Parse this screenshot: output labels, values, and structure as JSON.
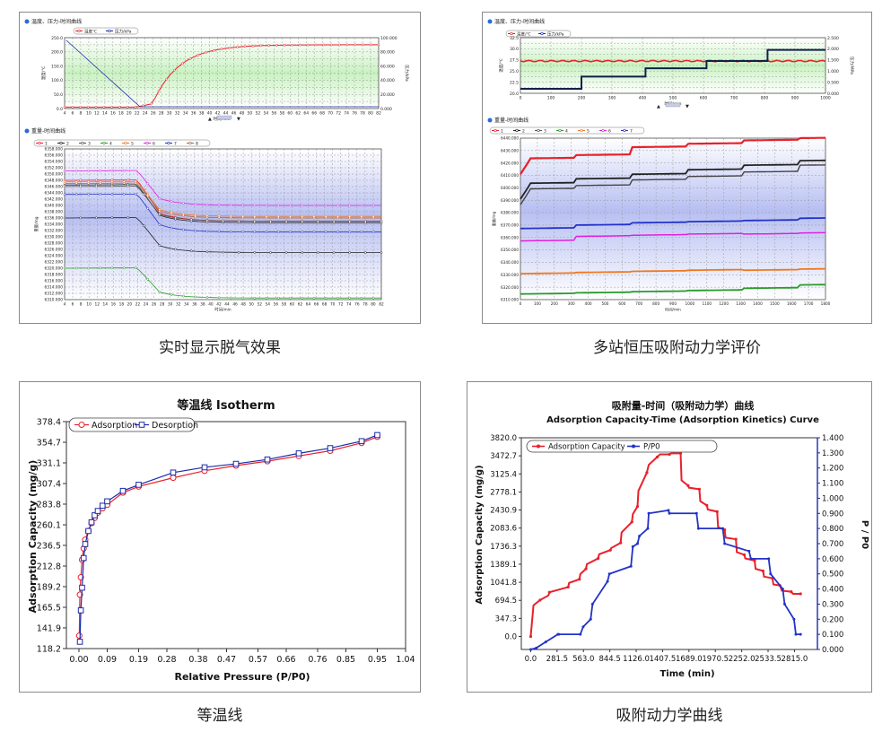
{
  "captions": {
    "p1": "实时显示脱气效果",
    "p2": "多站恒压吸附动力学评价",
    "p3": "等温线",
    "p4": "吸附动力学曲线"
  },
  "p1": {
    "top_title": "温度、压力-时间曲线",
    "top_legend": [
      "温度℃",
      "压力/kPa"
    ],
    "top_left_ticks": [
      "0.0",
      "50.0",
      "100.0",
      "150.0",
      "200.0",
      "250.0"
    ],
    "top_right_ticks": [
      "0.000",
      "20.000",
      "40.000",
      "60.000",
      "80.000",
      "100.000"
    ],
    "top_yleft": "温度/℃",
    "top_yright": "压力/kPa",
    "x_ticks": [
      "4",
      "6",
      "8",
      "10",
      "12",
      "14",
      "16",
      "18",
      "20",
      "22",
      "24",
      "26",
      "28",
      "30",
      "32",
      "34",
      "36",
      "38",
      "40",
      "42",
      "44",
      "46",
      "48",
      "50",
      "52",
      "54",
      "56",
      "58",
      "60",
      "62",
      "64",
      "66",
      "68",
      "70",
      "72",
      "74",
      "76",
      "78",
      "80",
      "82"
    ],
    "x_label": "时间/min",
    "bottom_title": "重量-时间曲线",
    "bottom_legend": [
      "1",
      "2",
      "3",
      "4",
      "5",
      "6",
      "7",
      "8"
    ],
    "bottom_y_ticks": [
      "6310.000",
      "6312.000",
      "6314.000",
      "6316.000",
      "6318.000",
      "6320.000",
      "6322.000",
      "6324.000",
      "6326.000",
      "6328.000",
      "6330.000",
      "6332.000",
      "6334.000",
      "6336.000",
      "6338.000",
      "6340.000",
      "6342.000",
      "6344.000",
      "6346.000",
      "6348.000",
      "6350.000",
      "6352.000",
      "6354.000",
      "6356.000",
      "6358.000"
    ],
    "bottom_ylabel": "重量/mg"
  },
  "p2": {
    "top_title": "温度、压力-时间曲线",
    "top_legend": [
      "温度/℃",
      "压力/kPa"
    ],
    "top_left_ticks": [
      "20.0",
      "22.5",
      "25.0",
      "27.5",
      "30.0",
      "32.5"
    ],
    "top_right_ticks": [
      "0.000",
      "0.500",
      "1.000",
      "1.500",
      "2.000",
      "2.500"
    ],
    "top_yleft": "温度/℃",
    "top_yright": "压力/MPa",
    "x_ticks": [
      "0",
      "100",
      "200",
      "300",
      "400",
      "500",
      "600",
      "700",
      "800",
      "900",
      "1000",
      "1100",
      "1200",
      "1300",
      "1400",
      "1500",
      "1600",
      "1700",
      "1800"
    ],
    "top_x_ticks": [
      "0",
      "100",
      "200",
      "300",
      "400",
      "500",
      "600",
      "700",
      "800",
      "900",
      "1000"
    ],
    "x_label": "时间/min",
    "bottom_title": "重量-时间曲线",
    "bottom_legend": [
      "1",
      "2",
      "3",
      "4",
      "5",
      "6",
      "7"
    ],
    "bottom_y_ticks": [
      "6310.000",
      "6320.000",
      "6330.000",
      "6340.000",
      "6350.000",
      "6360.000",
      "6370.000",
      "6380.000",
      "6390.000",
      "6400.000",
      "6410.000",
      "6420.000",
      "6430.000",
      "6440.000"
    ],
    "bottom_ylabel": "重量/mg"
  },
  "chart_data": [
    {
      "type": "line",
      "title": "等温线 Isotherm",
      "xlabel": "Relative Pressure (P/P0)",
      "ylabel": "Adsorption Capacity (mg/g)",
      "x_ticks": [
        "0.00",
        "0.09",
        "0.19",
        "0.28",
        "0.38",
        "0.47",
        "0.57",
        "0.66",
        "0.76",
        "0.85",
        "0.95",
        "1.04"
      ],
      "y_ticks": [
        "118.2",
        "141.9",
        "165.5",
        "189.2",
        "212.8",
        "236.5",
        "260.1",
        "283.8",
        "307.4",
        "331.1",
        "354.7",
        "378.4"
      ],
      "xlim": [
        -0.04,
        1.04
      ],
      "ylim": [
        118.2,
        378.4
      ],
      "legend_position": "top-left",
      "series": [
        {
          "name": "Adsorption",
          "color": "#e8212a",
          "marker": "circle",
          "x": [
            0.001,
            0.003,
            0.006,
            0.01,
            0.015,
            0.02,
            0.03,
            0.04,
            0.05,
            0.06,
            0.075,
            0.09,
            0.14,
            0.19,
            0.3,
            0.4,
            0.5,
            0.6,
            0.7,
            0.8,
            0.9,
            0.95
          ],
          "y": [
            133,
            180,
            200,
            220,
            233,
            243,
            253,
            262,
            268,
            274,
            279,
            283,
            297,
            304,
            314,
            322,
            328,
            333,
            339,
            345,
            354,
            361
          ]
        },
        {
          "name": "Desorption",
          "color": "#1c2aa8",
          "marker": "square",
          "x": [
            0.003,
            0.006,
            0.01,
            0.015,
            0.02,
            0.03,
            0.04,
            0.05,
            0.06,
            0.075,
            0.09,
            0.14,
            0.19,
            0.3,
            0.4,
            0.5,
            0.6,
            0.7,
            0.8,
            0.9,
            0.95
          ],
          "y": [
            126,
            162,
            188,
            222,
            238,
            253,
            263,
            271,
            276,
            282,
            287,
            299,
            306,
            320,
            326,
            330,
            335,
            342,
            348,
            356,
            363
          ]
        }
      ]
    },
    {
      "type": "line",
      "title": "吸附量-时间（吸附动力学）曲线",
      "subtitle": "Adsorption Capacity-Time (Adsorption Kinetics) Curve",
      "xlabel": "Time (min)",
      "ylabel": "Adsorption Capacity (mg/g)",
      "y2label": "P / P0",
      "x_ticks": [
        "0.0",
        "281.5",
        "563.0",
        "844.5",
        "1126.0",
        "1407.5",
        "1689.0",
        "1970.5",
        "2252.0",
        "2533.5",
        "2815.0"
      ],
      "y_ticks": [
        "0.0",
        "347.3",
        "694.5",
        "1041.8",
        "1389.1",
        "1736.3",
        "2083.6",
        "2430.9",
        "2778.1",
        "3125.4",
        "3472.7",
        "3820.0"
      ],
      "y2_ticks": [
        "0.000",
        "0.100",
        "0.200",
        "0.300",
        "0.400",
        "0.500",
        "0.600",
        "0.700",
        "0.800",
        "0.900",
        "1.000",
        "1.100",
        "1.200",
        "1.300",
        "1.400"
      ],
      "xlim": [
        -100,
        3060
      ],
      "ylim": [
        -250,
        3820
      ],
      "y2lim": [
        0,
        1.4
      ],
      "legend_position": "top",
      "series": [
        {
          "name": "Adsorption  Capacity",
          "color": "#e8212a",
          "axis": "left",
          "x": [
            0,
            30,
            100,
            190,
            200,
            300,
            400,
            410,
            520,
            530,
            590,
            600,
            720,
            730,
            850,
            860,
            960,
            970,
            1080,
            1090,
            1140,
            1150,
            1240,
            1260,
            1350,
            1380,
            1480,
            1500,
            1600,
            1610,
            1680,
            1690,
            1800,
            1810,
            1880,
            1890,
            1990,
            2000,
            2070,
            2080,
            2190,
            2200,
            2280,
            2290,
            2390,
            2400,
            2480,
            2490,
            2580,
            2590,
            2660,
            2680,
            2780,
            2800,
            2880
          ],
          "y": [
            0,
            600,
            700,
            790,
            850,
            900,
            950,
            1030,
            1100,
            1200,
            1300,
            1390,
            1500,
            1580,
            1660,
            1700,
            1800,
            2000,
            2200,
            2350,
            2500,
            2800,
            3150,
            3300,
            3450,
            3500,
            3500,
            3520,
            3520,
            3000,
            2900,
            2860,
            2830,
            2600,
            2520,
            2440,
            2400,
            2100,
            2050,
            1900,
            1870,
            1620,
            1570,
            1500,
            1460,
            1300,
            1260,
            1150,
            1120,
            1000,
            980,
            880,
            860,
            820,
            820
          ]
        },
        {
          "name": "P/P0",
          "color": "#2233c8",
          "axis": "right",
          "x": [
            0,
            60,
            160,
            290,
            300,
            530,
            560,
            640,
            660,
            820,
            840,
            1070,
            1090,
            1140,
            1160,
            1250,
            1260,
            1470,
            1480,
            1770,
            1790,
            2050,
            2070,
            2330,
            2350,
            2540,
            2560,
            2690,
            2710,
            2810,
            2830,
            2880
          ],
          "y": [
            0,
            0.01,
            0.05,
            0.1,
            0.1,
            0.1,
            0.15,
            0.2,
            0.3,
            0.45,
            0.5,
            0.55,
            0.68,
            0.7,
            0.75,
            0.8,
            0.9,
            0.92,
            0.9,
            0.9,
            0.8,
            0.8,
            0.7,
            0.65,
            0.6,
            0.6,
            0.5,
            0.4,
            0.3,
            0.2,
            0.1,
            0.1
          ]
        }
      ]
    }
  ]
}
